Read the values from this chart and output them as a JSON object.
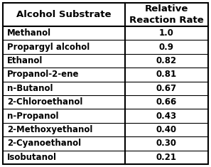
{
  "col1_header": "Alcohol Substrate",
  "col2_header": "Relative\nReaction Rate",
  "rows": [
    [
      "Methanol",
      "1.0"
    ],
    [
      "Propargyl alcohol",
      "0.9"
    ],
    [
      "Ethanol",
      "0.82"
    ],
    [
      "Propanol-2-ene",
      "0.81"
    ],
    [
      "n-Butanol",
      "0.67"
    ],
    [
      "2-Chloroethanol",
      "0.66"
    ],
    [
      "n-Propanol",
      "0.43"
    ],
    [
      "2-Methoxyethanol",
      "0.40"
    ],
    [
      "2-Cyanoethanol",
      "0.30"
    ],
    [
      "Isobutanol",
      "0.21"
    ]
  ],
  "bg_color": "#ffffff",
  "border_color": "#000000",
  "text_color": "#000000",
  "header_text_color": "#000000",
  "font_size": 8.5,
  "header_font_size": 9.5,
  "col_split": 0.595
}
